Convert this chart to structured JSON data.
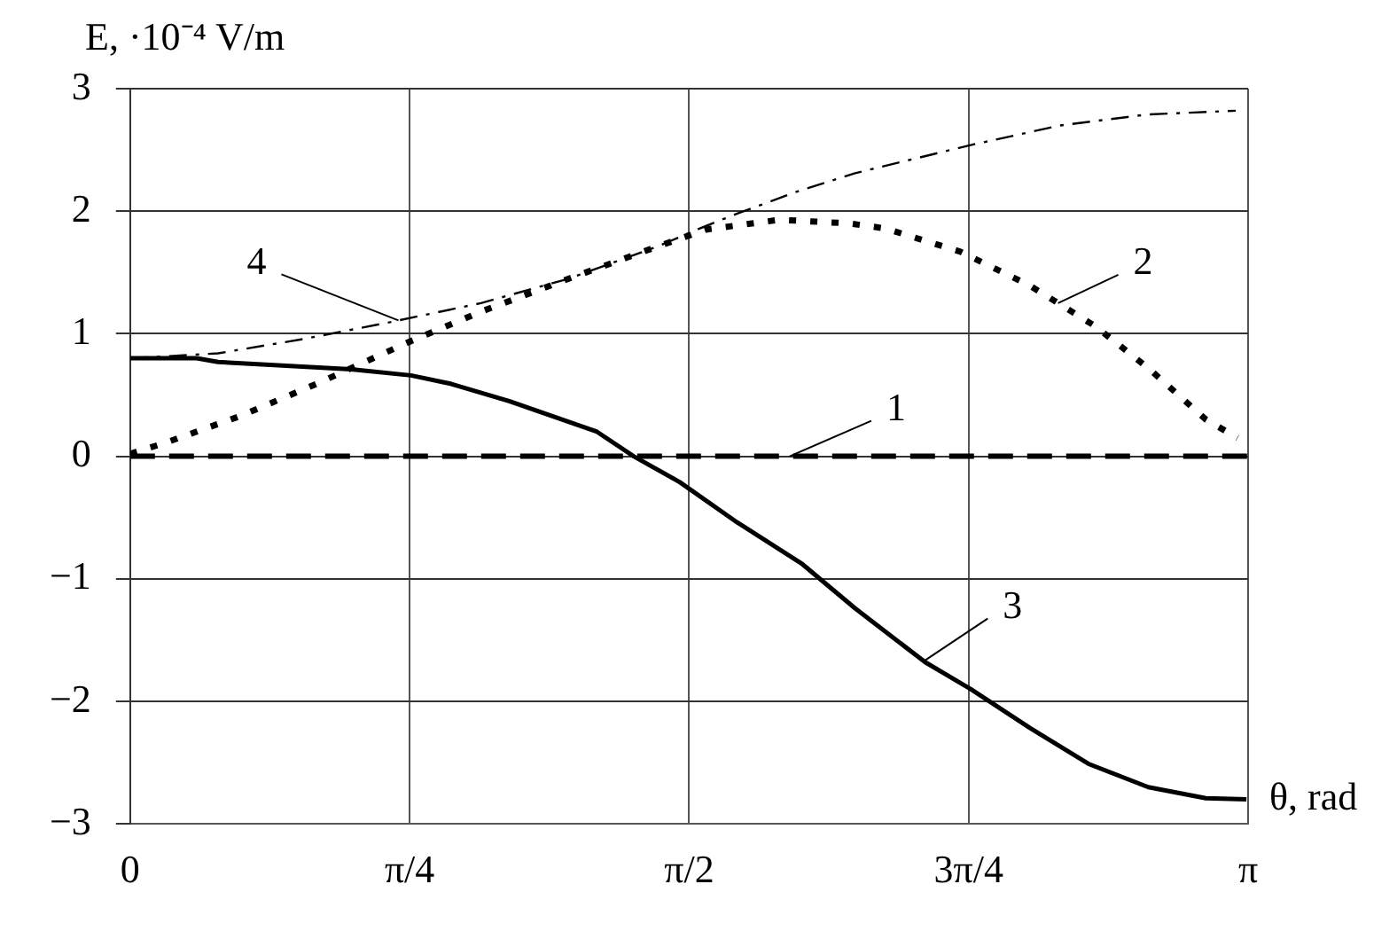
{
  "chart_data": {
    "type": "line",
    "xlabel": "θ, rad",
    "ylabel": "E, ·10⁻⁴ V/m",
    "xlim": [
      0,
      3.1416
    ],
    "ylim": [
      -3,
      3
    ],
    "xticks": [
      {
        "value": 0,
        "label": "0"
      },
      {
        "value": 0.7854,
        "label": "π/4"
      },
      {
        "value": 1.5708,
        "label": "π/2"
      },
      {
        "value": 2.3562,
        "label": "3π/4"
      },
      {
        "value": 3.1416,
        "label": "π"
      }
    ],
    "yticks": [
      -3,
      -2,
      -1,
      0,
      1,
      2,
      3
    ],
    "grid": true,
    "legend": false,
    "marker": "none",
    "series": [
      {
        "name": "1",
        "color": "#000000",
        "line_style": "dashed",
        "x": [
          0,
          3.14
        ],
        "values": [
          0,
          0
        ]
      },
      {
        "name": "2",
        "color": "#000000",
        "line_style": "dotted",
        "x": [
          0,
          0.099,
          0.311,
          0.523,
          0.789,
          0.986,
          1.233,
          1.48,
          1.618,
          1.825,
          2.022,
          2.121,
          2.333,
          2.53,
          2.713,
          2.861,
          3.023,
          3.112
        ],
        "values": [
          0.02,
          0.11,
          0.33,
          0.59,
          0.94,
          1.18,
          1.45,
          1.71,
          1.85,
          1.93,
          1.9,
          1.86,
          1.67,
          1.39,
          1.06,
          0.72,
          0.3,
          0.15
        ]
      },
      {
        "name": "3",
        "color": "#000000",
        "line_style": "solid",
        "x": [
          0,
          0.187,
          0.247,
          0.621,
          0.789,
          0.903,
          1.065,
          1.312,
          1.415,
          1.544,
          1.706,
          1.889,
          2.037,
          2.234,
          2.362,
          2.53,
          2.693,
          2.861,
          3.023,
          3.137
        ],
        "values": [
          0.8,
          0.8,
          0.77,
          0.71,
          0.66,
          0.59,
          0.45,
          0.2,
          0,
          -0.21,
          -0.54,
          -0.88,
          -1.24,
          -1.68,
          -1.9,
          -2.22,
          -2.51,
          -2.7,
          -2.79,
          -2.8
        ]
      },
      {
        "name": "4",
        "color": "#000000",
        "line_style": "dashdot",
        "x": [
          0,
          0.247,
          0.493,
          0.74,
          0.986,
          1.233,
          1.48,
          1.618,
          1.706,
          1.874,
          2.037,
          2.362,
          2.614,
          2.861,
          3.107
        ],
        "values": [
          0.8,
          0.84,
          0.96,
          1.1,
          1.25,
          1.45,
          1.71,
          1.88,
          1.98,
          2.16,
          2.31,
          2.54,
          2.7,
          2.79,
          2.82
        ]
      }
    ]
  }
}
